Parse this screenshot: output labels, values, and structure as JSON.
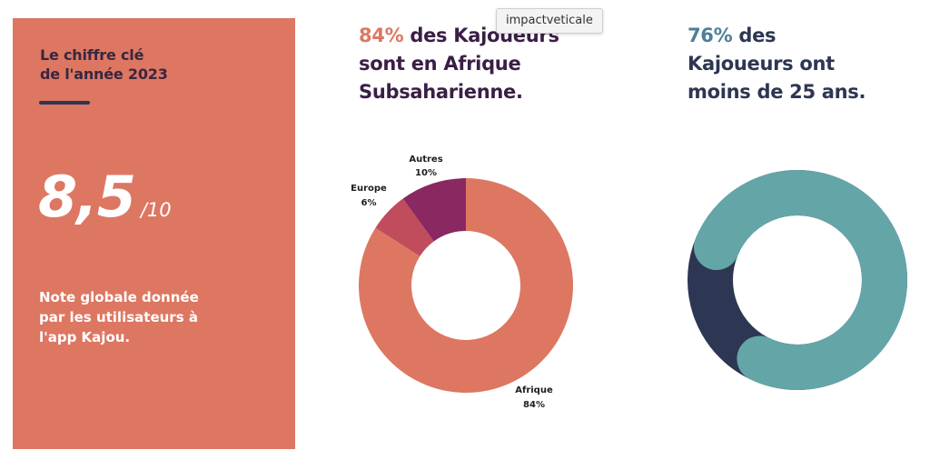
{
  "key_figure": {
    "title_line1": "Le chiffre clé",
    "title_line2": "de l'année 2023",
    "value": "8,5",
    "denominator": "/10",
    "caption_lines": [
      "Note globale donnée",
      "par les utilisateurs à",
      "l'app Kajou."
    ]
  },
  "tooltip": "impactveticale",
  "colors": {
    "card": "#dd7762",
    "headline_dark": "#3a1e45",
    "headline_blue": "#2d3652",
    "pct_orange": "#dd7762",
    "pct_teal": "#4e7f98"
  },
  "chart_data": [
    {
      "type": "pie",
      "donut": true,
      "headline_pct": "84%",
      "headline_rest1": " des Kajoueurs",
      "headline_line2": "sont en Afrique",
      "headline_line3": "Subsaharienne.",
      "slices": [
        {
          "label": "Afrique",
          "value": 84,
          "pct_text": "84%",
          "color": "#dd7762"
        },
        {
          "label": "Europe",
          "value": 6,
          "pct_text": "6%",
          "color": "#c14c5c"
        },
        {
          "label": "Autres",
          "value": 10,
          "pct_text": "10%",
          "color": "#8a2862"
        }
      ]
    },
    {
      "type": "pie",
      "donut": true,
      "headline_pct": "76%",
      "headline_rest1": " des",
      "headline_line2": "Kajoueurs ont",
      "headline_line3": "moins de 25 ans.",
      "slices": [
        {
          "label": "",
          "value": 76,
          "color": "#64a5a8"
        },
        {
          "label": "",
          "value": 24,
          "color": "#2d3652"
        }
      ]
    }
  ]
}
